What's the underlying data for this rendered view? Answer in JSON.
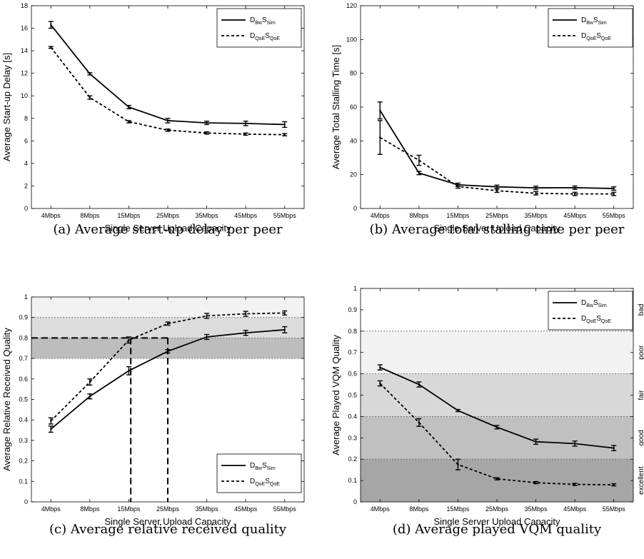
{
  "chart_data": [
    {
      "id": "a",
      "type": "line",
      "caption": "(a) Average start-up delay per peer",
      "xlabel": "Single Server Upload Capacity",
      "ylabel": "Average Start-up Delay [s]",
      "categories": [
        "4Mbps",
        "8Mbps",
        "15Mbps",
        "25Mbps",
        "35Mbps",
        "45Mbps",
        "55Mbps"
      ],
      "ylim": [
        0,
        18
      ],
      "yticks": [
        0,
        2,
        4,
        6,
        8,
        10,
        12,
        14,
        16,
        18
      ],
      "ytick_labels": [
        "0",
        "2",
        "4",
        "6",
        "8",
        "10",
        "12",
        "14",
        "16",
        "18"
      ],
      "legend_position": "top-right",
      "series": [
        {
          "main": "D",
          "sub1": "Bw",
          "mid": "S",
          "sub2": "Sim",
          "style": "solid",
          "values": [
            16.3,
            11.95,
            9.0,
            7.8,
            7.6,
            7.55,
            7.45
          ],
          "errors": [
            0.3,
            0.1,
            0.15,
            0.2,
            0.15,
            0.2,
            0.25
          ]
        },
        {
          "main": "D",
          "sub1": "QoE",
          "mid": "S",
          "sub2": "QoE",
          "style": "dashed",
          "values": [
            14.3,
            9.85,
            7.7,
            6.95,
            6.7,
            6.6,
            6.55
          ],
          "errors": [
            0.08,
            0.15,
            0.1,
            0.1,
            0.1,
            0.1,
            0.1
          ]
        }
      ]
    },
    {
      "id": "b",
      "type": "line",
      "caption": "(b) Average total stalling time per peer",
      "xlabel": "Single Server Upload Capacity",
      "ylabel": "Average Total Stalling Time [s]",
      "categories": [
        "4Mbps",
        "8Mbps",
        "15Mbps",
        "25Mbps",
        "35Mbps",
        "45Mbps",
        "55Mbps"
      ],
      "ylim": [
        0,
        120
      ],
      "yticks": [
        0,
        20,
        40,
        60,
        80,
        100,
        120
      ],
      "ytick_labels": [
        "0",
        "20",
        "40",
        "60",
        "80",
        "100",
        "120"
      ],
      "legend_position": "top-right",
      "series": [
        {
          "main": "D",
          "sub1": "Bw",
          "mid": "S",
          "sub2": "Sim",
          "style": "solid",
          "values": [
            58,
            21,
            14,
            12.8,
            12.2,
            12.3,
            11.8
          ],
          "errors": [
            5,
            1,
            1,
            1,
            1,
            1,
            1
          ]
        },
        {
          "main": "D",
          "sub1": "QoE",
          "mid": "S",
          "sub2": "QoE",
          "style": "dashed",
          "values": [
            42,
            28.5,
            13,
            10.5,
            9,
            8.6,
            8.6
          ],
          "errors": [
            10,
            3,
            1,
            1,
            1,
            1,
            1
          ]
        }
      ]
    },
    {
      "id": "c",
      "type": "line",
      "caption": "(c) Average relative received quality",
      "xlabel": "Single Server Upload Capacity",
      "ylabel": "Average Relative Received Quality",
      "categories": [
        "4Mbps",
        "8Mbps",
        "15Mbps",
        "25Mbps",
        "35Mbps",
        "45Mbps",
        "55Mbps"
      ],
      "ylim": [
        0,
        1
      ],
      "yticks": [
        0,
        0.1,
        0.2,
        0.3,
        0.4,
        0.5,
        0.6,
        0.7,
        0.8,
        0.9,
        1
      ],
      "ytick_labels": [
        "0",
        "0.1",
        "0.2",
        "0.3",
        "0.4",
        "0.5",
        "0.6",
        "0.7",
        "0.8",
        "0.9",
        "1"
      ],
      "legend_position": "bottom-right",
      "bands": [
        {
          "from": 0.9,
          "to": 1.0,
          "color": "#f2f2f2"
        },
        {
          "from": 0.8,
          "to": 0.9,
          "color": "#dcdcdc"
        },
        {
          "from": 0.7,
          "to": 0.8,
          "color": "#bdbdbd"
        }
      ],
      "band_lines": [
        0.7,
        0.8,
        0.9
      ],
      "reference_y": 0.8,
      "reference_x": [
        2.05,
        3.0
      ],
      "series": [
        {
          "main": "D",
          "sub1": "Bw",
          "mid": "S",
          "sub2": "Sim",
          "style": "solid",
          "values": [
            0.355,
            0.515,
            0.64,
            0.735,
            0.805,
            0.825,
            0.84
          ],
          "errors": [
            0.015,
            0.012,
            0.02,
            0.008,
            0.012,
            0.012,
            0.015
          ]
        },
        {
          "main": "D",
          "sub1": "QoE",
          "mid": "S",
          "sub2": "QoE",
          "style": "dashed",
          "values": [
            0.395,
            0.585,
            0.79,
            0.87,
            0.908,
            0.918,
            0.922
          ],
          "errors": [
            0.015,
            0.015,
            0.015,
            0.008,
            0.012,
            0.012,
            0.01
          ]
        }
      ]
    },
    {
      "id": "d",
      "type": "line",
      "caption": "(d) Average played VQM quality",
      "xlabel": "Single Server Upload Capacity",
      "ylabel": "Average Played VQM Quality",
      "categories": [
        "4Mbps",
        "8Mbps",
        "15Mbps",
        "25Mbps",
        "35Mbps",
        "45Mbps",
        "55Mbps"
      ],
      "ylim": [
        0,
        1
      ],
      "yticks": [
        0,
        0.1,
        0.2,
        0.3,
        0.4,
        0.5,
        0.6,
        0.7,
        0.8,
        0.9,
        1
      ],
      "ytick_labels": [
        "0",
        "0.1",
        "0.2",
        "0.3",
        "0.4",
        "0.5",
        "0.6",
        "0.7",
        "0.8",
        "0.9",
        "1"
      ],
      "legend_position": "top-right",
      "bands": [
        {
          "from": 0.6,
          "to": 0.8,
          "color": "#f2f2f2"
        },
        {
          "from": 0.4,
          "to": 0.6,
          "color": "#d8d8d8"
        },
        {
          "from": 0.2,
          "to": 0.4,
          "color": "#c0c0c0"
        },
        {
          "from": 0.0,
          "to": 0.2,
          "color": "#a6a6a6"
        }
      ],
      "band_lines": [
        0.2,
        0.4,
        0.6,
        0.8
      ],
      "band_labels": [
        {
          "label": "bad",
          "center": 0.9
        },
        {
          "label": "poor",
          "center": 0.7
        },
        {
          "label": "fair",
          "center": 0.5
        },
        {
          "label": "good",
          "center": 0.3
        },
        {
          "label": "excellent",
          "center": 0.1
        }
      ],
      "series": [
        {
          "main": "D",
          "sub1": "Bw",
          "mid": "S",
          "sub2": "Sim",
          "style": "solid",
          "values": [
            0.63,
            0.55,
            0.428,
            0.35,
            0.282,
            0.273,
            0.252
          ],
          "errors": [
            0.012,
            0.012,
            0.005,
            0.008,
            0.012,
            0.012,
            0.012
          ]
        },
        {
          "main": "D",
          "sub1": "QoE",
          "mid": "S",
          "sub2": "QoE",
          "style": "dashed",
          "values": [
            0.555,
            0.372,
            0.175,
            0.108,
            0.09,
            0.082,
            0.08
          ],
          "errors": [
            0.012,
            0.018,
            0.025,
            0.005,
            0.005,
            0.005,
            0.005
          ]
        }
      ]
    }
  ]
}
